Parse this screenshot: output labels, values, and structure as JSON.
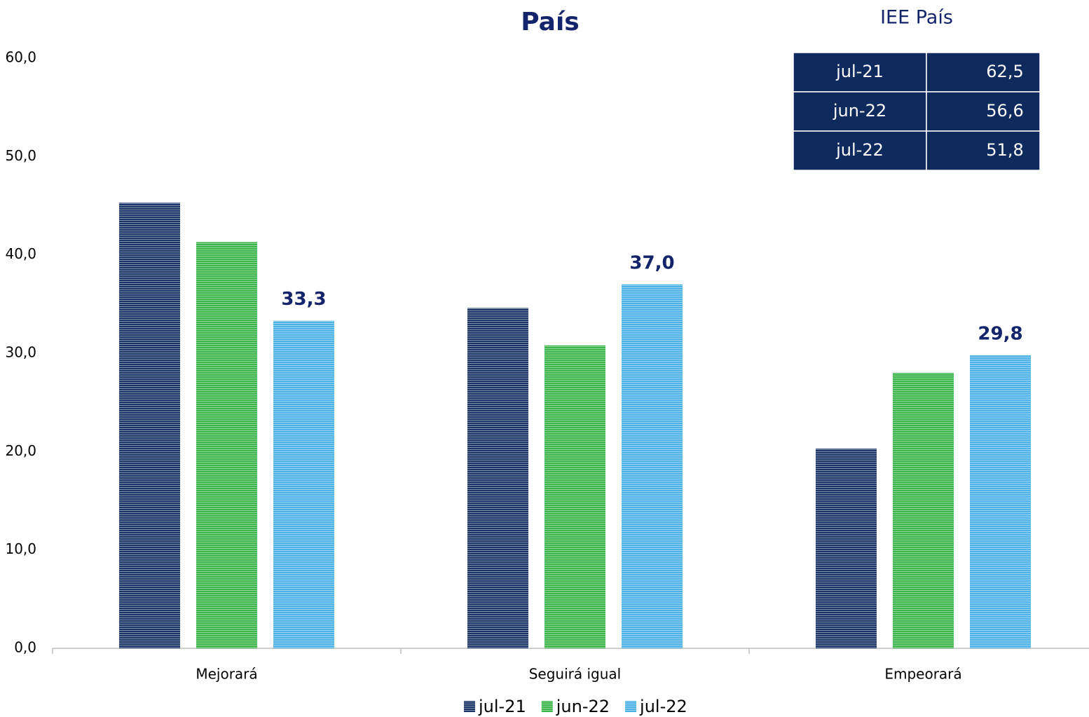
{
  "chart_data": {
    "type": "bar",
    "title": "País",
    "categories": [
      "Mejorará",
      "Seguirá igual",
      "Empeorará"
    ],
    "series": [
      {
        "name": "jul-21",
        "color": "#1b3468",
        "values": [
          45.3,
          34.6,
          20.3
        ]
      },
      {
        "name": "jun-22",
        "color": "#3bb54a",
        "values": [
          41.3,
          30.8,
          28.0
        ]
      },
      {
        "name": "jul-22",
        "color": "#4cb2e6",
        "values": [
          33.3,
          37.0,
          29.8
        ],
        "value_labels": [
          "33,3",
          "37,0",
          "29,8"
        ]
      }
    ],
    "ylim": [
      0,
      60
    ],
    "yticks": [
      {
        "value": 0,
        "label": "0,0"
      },
      {
        "value": 10,
        "label": "10,0"
      },
      {
        "value": 20,
        "label": "20,0"
      },
      {
        "value": 30,
        "label": "30,0"
      },
      {
        "value": 40,
        "label": "40,0"
      },
      {
        "value": 50,
        "label": "50,0"
      },
      {
        "value": 60,
        "label": "60,0"
      }
    ],
    "grid": false,
    "legend": "bottom"
  },
  "table": {
    "title": "IEE País",
    "rows": [
      [
        "jul-21",
        "62,5"
      ],
      [
        "jun-22",
        "56,6"
      ],
      [
        "jul-22",
        "51,8"
      ]
    ]
  }
}
